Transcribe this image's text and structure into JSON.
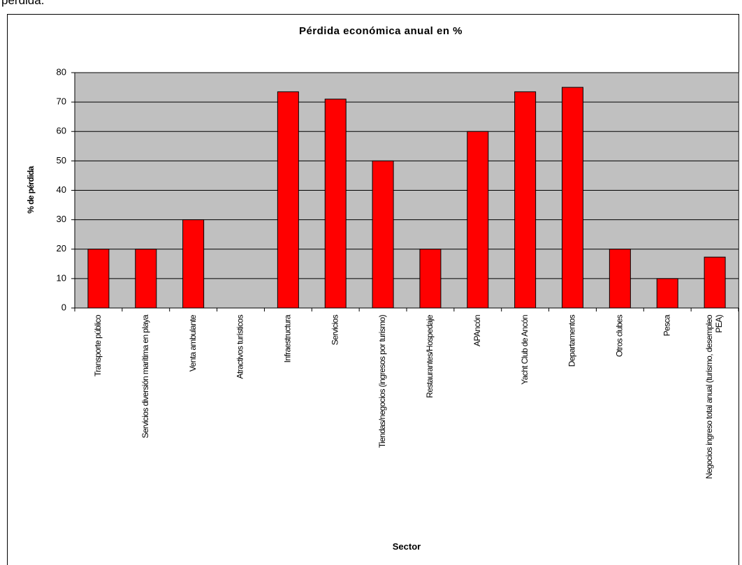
{
  "page_header": "pérdida.",
  "chart_data": {
    "type": "bar",
    "title": "Pérdida económica anual en %",
    "x_label": "Sector",
    "y_label": "% de pérdida",
    "categories": [
      "Transporte público",
      "Servicios diversión marítima en playa",
      "Venta ambulante",
      "Atractivos turísticos",
      "Infraestructura",
      "Servicios",
      "Tiendas/negocios (ingresos por turismo)",
      "Restaurantes/Hospedaje",
      "APAncón",
      "Yacht Club de Ancón",
      "Departamentos",
      "Otros clubes",
      "Pesca",
      "Negocios ingreso total anual (turismo, desempleo PEA)"
    ],
    "values": [
      20,
      20,
      30,
      0,
      73.5,
      71,
      50,
      20,
      60,
      73.5,
      75,
      20,
      10,
      17.3
    ],
    "color": "#ff0000",
    "plot_background": "#c0c0c0",
    "ylim": [
      0,
      80
    ],
    "yticks": [
      0,
      10,
      20,
      30,
      40,
      50,
      60,
      70,
      80
    ],
    "grid": true
  }
}
